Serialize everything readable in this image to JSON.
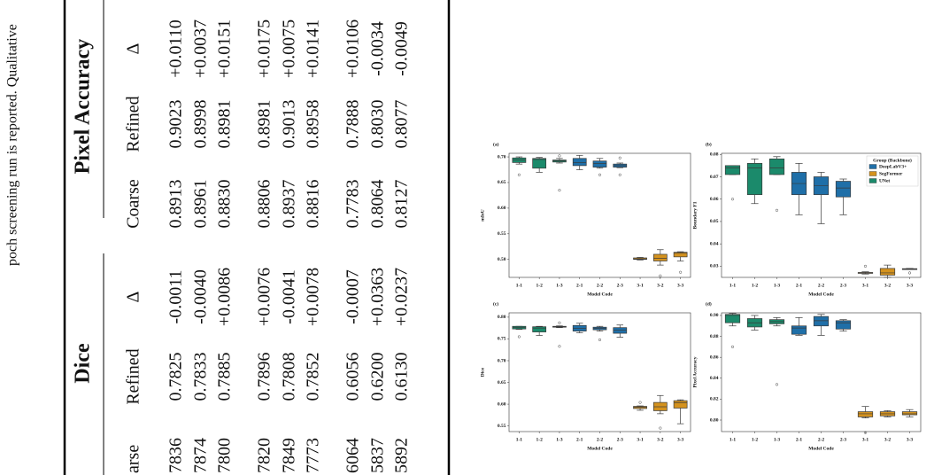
{
  "table": {
    "caption_fragment": "poch screening run is reported. Qualitative",
    "groups": [
      "Dice",
      "Pixel Accuracy"
    ],
    "subheaders": [
      "arse",
      "Refined",
      "Δ",
      "Coarse",
      "Refined",
      "Δ"
    ],
    "rows": [
      [
        "7836",
        "0.7825",
        "-0.0011",
        "0.8913",
        "0.9023",
        "+0.0110"
      ],
      [
        "7874",
        "0.7833",
        "-0.0040",
        "0.8961",
        "0.8998",
        "+0.0037"
      ],
      [
        "7800",
        "0.7885",
        "+0.0086",
        "0.8830",
        "0.8981",
        "+0.0151"
      ],
      [
        "7820",
        "0.7896",
        "+0.0076",
        "0.8806",
        "0.8981",
        "+0.0175"
      ],
      [
        "7849",
        "0.7808",
        "-0.0041",
        "0.8937",
        "0.9013",
        "+0.0075"
      ],
      [
        "7773",
        "0.7852",
        "+0.0078",
        "0.8816",
        "0.8958",
        "+0.0141"
      ],
      [
        "6064",
        "0.6056",
        "-0.0007",
        "0.7783",
        "0.7888",
        "+0.0106"
      ],
      [
        "5837",
        "0.6200",
        "+0.0363",
        "0.8064",
        "0.8030",
        "-0.0034"
      ],
      [
        "5892",
        "0.6130",
        "+0.0237",
        "0.8127",
        "0.8077",
        "-0.0049"
      ]
    ]
  },
  "chart_data": [
    {
      "type": "box",
      "panel_label": "(a)",
      "ylabel": "mIoU",
      "xlabel": "Model Code",
      "categories": [
        "1-1",
        "1-2",
        "1-3",
        "2-1",
        "2-2",
        "2-3",
        "3-1",
        "3-2",
        "3-3"
      ],
      "colors": [
        "#1b8a6b",
        "#1b8a6b",
        "#1b8a6b",
        "#1f6fa8",
        "#1f6fa8",
        "#1f6fa8",
        "#d4921e",
        "#d4921e",
        "#d4921e"
      ],
      "boxes": [
        {
          "whislo": 0.686,
          "q1": 0.689,
          "med": 0.694,
          "q3": 0.698,
          "whishi": 0.7,
          "fliers": [
            0.665
          ]
        },
        {
          "whislo": 0.67,
          "q1": 0.678,
          "med": 0.695,
          "q3": 0.697,
          "whishi": 0.699,
          "fliers": []
        },
        {
          "whislo": 0.688,
          "q1": 0.69,
          "med": 0.692,
          "q3": 0.694,
          "whishi": 0.697,
          "fliers": [
            0.702,
            0.635
          ]
        },
        {
          "whislo": 0.675,
          "q1": 0.683,
          "med": 0.689,
          "q3": 0.697,
          "whishi": 0.703,
          "fliers": []
        },
        {
          "whislo": 0.678,
          "q1": 0.68,
          "med": 0.687,
          "q3": 0.692,
          "whishi": 0.697,
          "fliers": [
            0.665
          ]
        },
        {
          "whislo": 0.679,
          "q1": 0.68,
          "med": 0.683,
          "q3": 0.686,
          "whishi": 0.688,
          "fliers": [
            0.698,
            0.665
          ]
        },
        {
          "whislo": 0.499,
          "q1": 0.5,
          "med": 0.501,
          "q3": 0.503,
          "whishi": 0.504,
          "fliers": []
        },
        {
          "whislo": 0.489,
          "q1": 0.497,
          "med": 0.502,
          "q3": 0.51,
          "whishi": 0.519,
          "fliers": [
            0.468
          ]
        },
        {
          "whislo": 0.497,
          "q1": 0.505,
          "med": 0.512,
          "q3": 0.514,
          "whishi": 0.515,
          "fliers": [
            0.475
          ]
        }
      ],
      "ylim": [
        0.465,
        0.707
      ],
      "yticks": [
        {
          "value": 0.5,
          "label": "0.50"
        },
        0.55,
        {
          "value": 0.6,
          "label": "0.60"
        },
        0.65,
        {
          "value": 0.7,
          "label": "0.70"
        }
      ]
    },
    {
      "type": "box",
      "panel_label": "(b)",
      "ylabel": "Boundary F1",
      "xlabel": "Model Code",
      "categories": [
        "1-1",
        "1-2",
        "1-3",
        "2-1",
        "2-2",
        "2-3",
        "3-1",
        "3-2",
        "3-3"
      ],
      "colors": [
        "#1b8a6b",
        "#1b8a6b",
        "#1b8a6b",
        "#1f6fa8",
        "#1f6fa8",
        "#1f6fa8",
        "#d4921e",
        "#d4921e",
        "#d4921e"
      ],
      "boxes": [
        {
          "whislo": 0.071,
          "q1": 0.071,
          "med": 0.074,
          "q3": 0.075,
          "whishi": 0.075,
          "fliers": [
            0.06
          ]
        },
        {
          "whislo": 0.058,
          "q1": 0.062,
          "med": 0.074,
          "q3": 0.076,
          "whishi": 0.078,
          "fliers": []
        },
        {
          "whislo": 0.071,
          "q1": 0.071,
          "med": 0.074,
          "q3": 0.078,
          "whishi": 0.079,
          "fliers": [
            0.055
          ]
        },
        {
          "whislo": 0.053,
          "q1": 0.062,
          "med": 0.067,
          "q3": 0.072,
          "whishi": 0.076,
          "fliers": []
        },
        {
          "whislo": 0.049,
          "q1": 0.062,
          "med": 0.066,
          "q3": 0.07,
          "whishi": 0.072,
          "fliers": []
        },
        {
          "whislo": 0.053,
          "q1": 0.061,
          "med": 0.065,
          "q3": 0.068,
          "whishi": 0.069,
          "fliers": []
        },
        {
          "whislo": 0.0265,
          "q1": 0.0268,
          "med": 0.027,
          "q3": 0.0272,
          "whishi": 0.0275,
          "fliers": [
            0.03
          ]
        },
        {
          "whislo": 0.025,
          "q1": 0.026,
          "med": 0.027,
          "q3": 0.029,
          "whishi": 0.0305,
          "fliers": []
        },
        {
          "whislo": 0.0285,
          "q1": 0.0285,
          "med": 0.0287,
          "q3": 0.0289,
          "whishi": 0.029,
          "fliers": [
            0.027
          ]
        }
      ],
      "ylim": [
        0.025,
        0.0805
      ],
      "yticks": [
        0.03,
        0.04,
        0.05,
        0.06,
        0.07,
        0.08
      ],
      "legend": {
        "title": "Group (Backbone)",
        "loc": "upper right",
        "entries": [
          {
            "name": "DeepLabV3+",
            "color": "#1f6fa8"
          },
          {
            "name": "SegFormer",
            "color": "#d4921e"
          },
          {
            "name": "UNet",
            "color": "#1b8a6b"
          }
        ]
      }
    },
    {
      "type": "box",
      "panel_label": "(c)",
      "ylabel": "Dice",
      "xlabel": "Model Code",
      "categories": [
        "1-1",
        "1-2",
        "1-3",
        "2-1",
        "2-2",
        "2-3",
        "3-1",
        "3-2",
        "3-3"
      ],
      "colors": [
        "#1b8a6b",
        "#1b8a6b",
        "#1b8a6b",
        "#1f6fa8",
        "#1f6fa8",
        "#1f6fa8",
        "#d4921e",
        "#d4921e",
        "#d4921e"
      ],
      "boxes": [
        {
          "whislo": 0.772,
          "q1": 0.773,
          "med": 0.776,
          "q3": 0.779,
          "whishi": 0.779,
          "fliers": [
            0.755
          ]
        },
        {
          "whislo": 0.758,
          "q1": 0.766,
          "med": 0.775,
          "q3": 0.778,
          "whishi": 0.779,
          "fliers": []
        },
        {
          "whislo": 0.776,
          "q1": 0.777,
          "med": 0.778,
          "q3": 0.779,
          "whishi": 0.78,
          "fliers": [
            0.787,
            0.733
          ]
        },
        {
          "whislo": 0.764,
          "q1": 0.768,
          "med": 0.774,
          "q3": 0.781,
          "whishi": 0.786,
          "fliers": []
        },
        {
          "whislo": 0.768,
          "q1": 0.771,
          "med": 0.774,
          "q3": 0.777,
          "whishi": 0.779,
          "fliers": [
            0.748
          ]
        },
        {
          "whislo": 0.754,
          "q1": 0.763,
          "med": 0.77,
          "q3": 0.776,
          "whishi": 0.782,
          "fliers": []
        },
        {
          "whislo": 0.586,
          "q1": 0.59,
          "med": 0.593,
          "q3": 0.595,
          "whishi": 0.596,
          "fliers": [
            0.604
          ]
        },
        {
          "whislo": 0.578,
          "q1": 0.585,
          "med": 0.594,
          "q3": 0.604,
          "whishi": 0.62,
          "fliers": [
            0.545
          ]
        },
        {
          "whislo": 0.555,
          "q1": 0.591,
          "med": 0.603,
          "q3": 0.608,
          "whishi": 0.61,
          "fliers": []
        }
      ],
      "ylim": [
        0.537,
        0.81
      ],
      "yticks": [
        0.55,
        {
          "value": 0.6,
          "label": "0.60"
        },
        0.65,
        {
          "value": 0.7,
          "label": "0.70"
        },
        0.75,
        {
          "value": 0.8,
          "label": "0.80"
        }
      ]
    },
    {
      "type": "box",
      "panel_label": "(d)",
      "ylabel": "Pixel Accuracy",
      "xlabel": "Model Code",
      "categories": [
        "1-1",
        "1-2",
        "1-3",
        "2-1",
        "2-2",
        "2-3",
        "3-1",
        "3-2",
        "3-3"
      ],
      "colors": [
        "#1b8a6b",
        "#1b8a6b",
        "#1b8a6b",
        "#1f6fa8",
        "#1f6fa8",
        "#1f6fa8",
        "#d4921e",
        "#d4921e",
        "#d4921e"
      ],
      "boxes": [
        {
          "whislo": 0.89,
          "q1": 0.893,
          "med": 0.9,
          "q3": 0.901,
          "whishi": 0.902,
          "fliers": [
            0.87
          ]
        },
        {
          "whislo": 0.886,
          "q1": 0.889,
          "med": 0.893,
          "q3": 0.897,
          "whishi": 0.9,
          "fliers": []
        },
        {
          "whislo": 0.89,
          "q1": 0.892,
          "med": 0.894,
          "q3": 0.896,
          "whishi": 0.898,
          "fliers": [
            0.834
          ]
        },
        {
          "whislo": 0.881,
          "q1": 0.882,
          "med": 0.888,
          "q3": 0.89,
          "whishi": 0.898,
          "fliers": []
        },
        {
          "whislo": 0.881,
          "q1": 0.89,
          "med": 0.895,
          "q3": 0.899,
          "whishi": 0.901,
          "fliers": []
        },
        {
          "whislo": 0.885,
          "q1": 0.887,
          "med": 0.893,
          "q3": 0.895,
          "whishi": 0.896,
          "fliers": []
        },
        {
          "whislo": 0.802,
          "q1": 0.803,
          "med": 0.806,
          "q3": 0.808,
          "whishi": 0.813,
          "fliers": [
            0.788
          ]
        },
        {
          "whislo": 0.803,
          "q1": 0.804,
          "med": 0.806,
          "q3": 0.808,
          "whishi": 0.809,
          "fliers": []
        },
        {
          "whislo": 0.803,
          "q1": 0.805,
          "med": 0.806,
          "q3": 0.808,
          "whishi": 0.81,
          "fliers": []
        }
      ],
      "ylim": [
        0.789,
        0.9025
      ],
      "yticks": [
        {
          "value": 0.8,
          "label": "0.80"
        },
        0.82,
        0.84,
        0.86,
        0.88,
        {
          "value": 0.9,
          "label": "0.90"
        }
      ]
    }
  ]
}
